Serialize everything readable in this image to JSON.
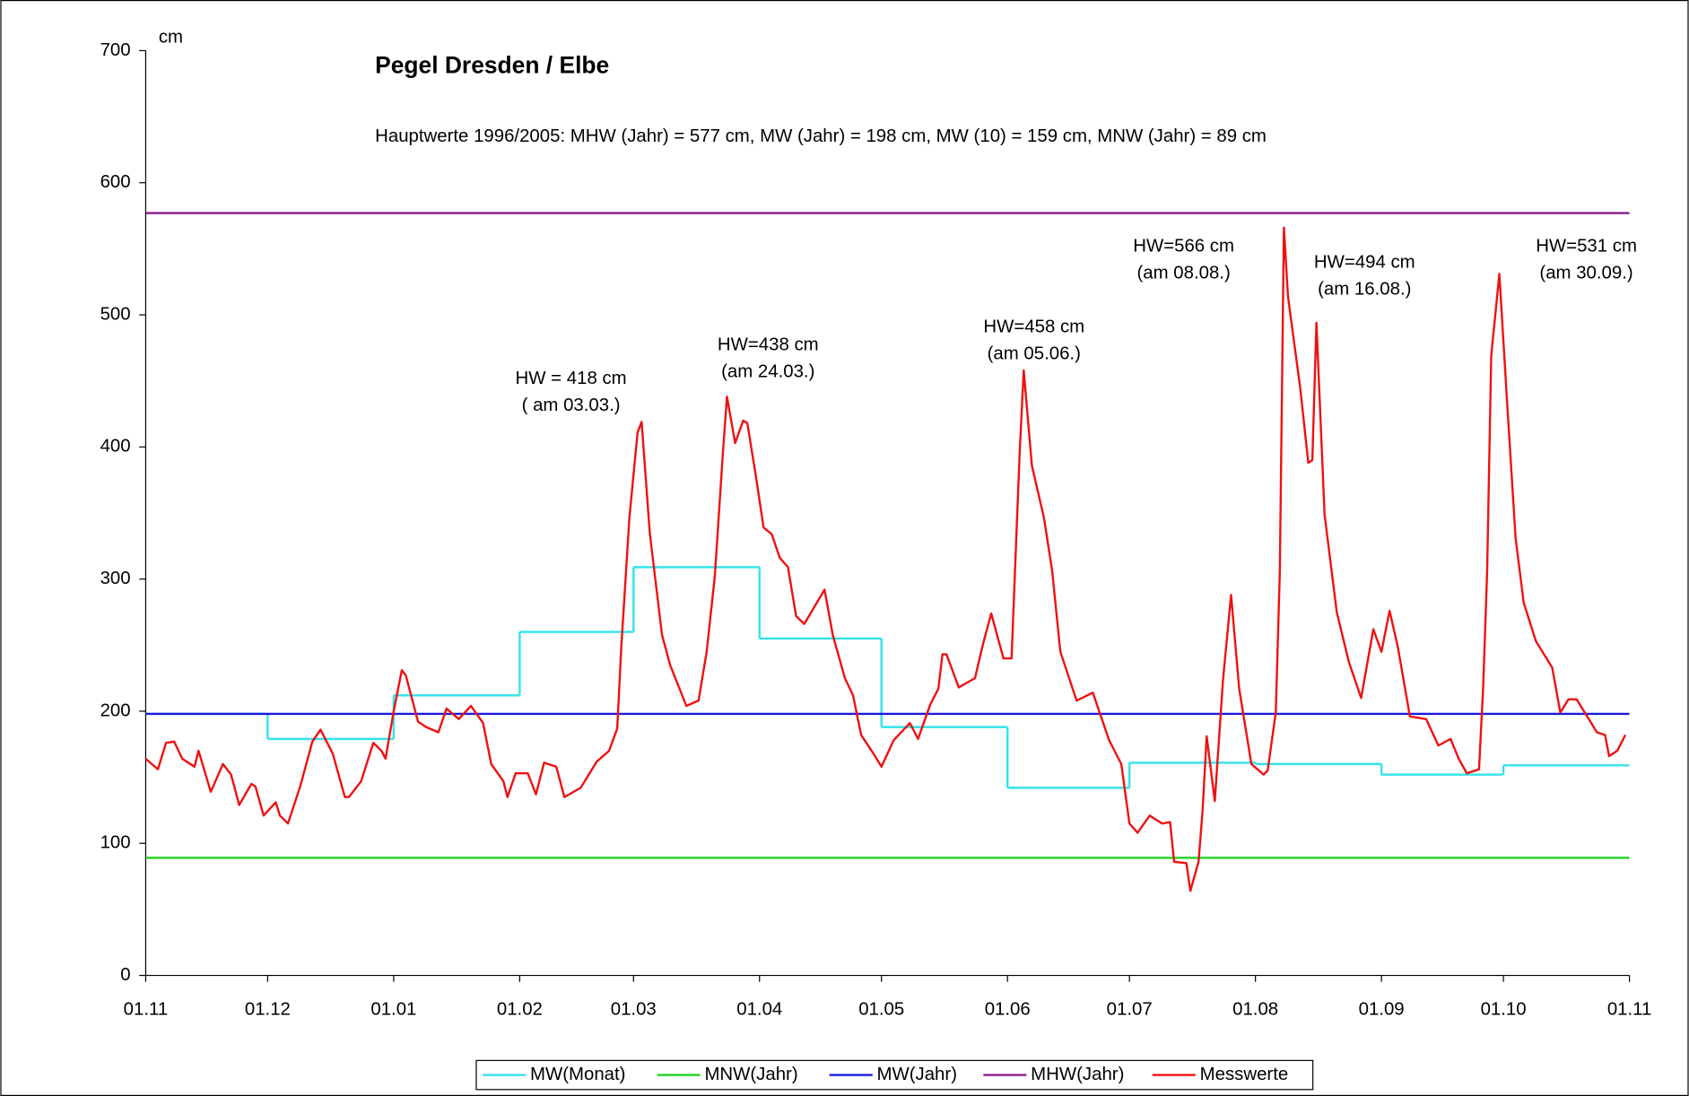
{
  "chart_data": {
    "type": "line",
    "title": "Pegel Dresden / Elbe",
    "subtitle": "Hauptwerte 1996/2005: MHW (Jahr) = 577 cm, MW (Jahr) = 198 cm, MW (10) = 159 cm, MNW (Jahr) = 89 cm",
    "ylabel": "cm",
    "xlim": [
      0,
      365
    ],
    "xticks": [
      {
        "value": 0,
        "label": "01.11"
      },
      {
        "value": 30,
        "label": "01.12"
      },
      {
        "value": 61,
        "label": "01.01"
      },
      {
        "value": 92,
        "label": "01.02"
      },
      {
        "value": 120,
        "label": "01.03"
      },
      {
        "value": 151,
        "label": "01.04"
      },
      {
        "value": 181,
        "label": "01.05"
      },
      {
        "value": 212,
        "label": "01.06"
      },
      {
        "value": 242,
        "label": "01.07"
      },
      {
        "value": 273,
        "label": "01.08"
      },
      {
        "value": 304,
        "label": "01.09"
      },
      {
        "value": 334,
        "label": "01.10"
      },
      {
        "value": 365,
        "label": "01.11"
      }
    ],
    "ylim": [
      0,
      700
    ],
    "yticks": [
      0,
      100,
      200,
      300,
      400,
      500,
      600,
      700
    ],
    "legend": "bottom",
    "series": [
      {
        "name": "MW(Monat)",
        "color": "#33e3ea",
        "style": "step",
        "bins": [
          0,
          30,
          61,
          92,
          120,
          151,
          181,
          212,
          242,
          273,
          304,
          334,
          365
        ],
        "values": [
          198,
          179,
          212,
          260,
          309,
          255,
          188,
          142,
          161,
          160,
          152,
          159
        ]
      },
      {
        "name": "MNW(Jahr)",
        "color": "#22d422",
        "style": "hline",
        "values": [
          89
        ]
      },
      {
        "name": "MW(Jahr)",
        "color": "#1a1adc",
        "style": "hline",
        "values": [
          198
        ]
      },
      {
        "name": "MHW(Jahr)",
        "color": "#8a1a8a",
        "style": "hline",
        "values": [
          577
        ]
      },
      {
        "name": "Messwerte",
        "color": "#ee1111",
        "style": "line",
        "x": [
          0,
          3,
          5,
          7,
          9,
          12,
          13,
          16,
          19,
          21,
          23,
          26,
          27,
          29,
          32,
          33,
          35,
          38,
          41,
          43,
          46,
          49,
          50,
          53,
          56,
          58,
          59,
          61,
          63,
          64,
          67,
          69,
          72,
          74,
          77,
          80,
          83,
          85,
          88,
          89,
          91,
          94,
          96,
          98,
          101,
          103,
          107,
          111,
          114,
          116,
          117,
          119,
          121,
          122,
          124,
          127,
          129,
          133,
          136,
          138,
          140,
          142,
          143,
          145,
          147,
          148,
          150,
          152,
          154,
          156,
          158,
          160,
          162,
          167,
          169,
          172,
          174,
          176,
          179,
          181,
          184,
          188,
          190,
          193,
          195,
          196,
          197,
          200,
          204,
          206,
          208,
          211,
          213,
          215,
          216,
          218,
          221,
          223,
          225,
          229,
          233,
          237,
          240,
          242,
          244,
          247,
          250,
          252,
          253,
          256,
          257,
          259,
          260,
          261,
          263,
          265,
          267,
          269,
          272,
          275,
          276,
          278,
          279,
          280,
          281,
          284,
          286,
          287,
          288,
          290,
          293,
          296,
          299,
          302,
          304,
          306,
          308,
          311,
          315,
          318,
          321,
          323,
          325,
          328,
          329,
          330,
          331,
          333,
          335,
          337,
          339,
          342,
          346,
          348,
          350,
          352,
          355,
          357,
          359,
          360,
          362,
          364
        ],
        "values": [
          164,
          156,
          176,
          177,
          164,
          158,
          170,
          139,
          160,
          152,
          129,
          145,
          143,
          121,
          131,
          121,
          115,
          143,
          177,
          186,
          168,
          135,
          135,
          147,
          176,
          170,
          164,
          200,
          231,
          227,
          192,
          188,
          184,
          202,
          194,
          204,
          191,
          160,
          147,
          135,
          153,
          153,
          137,
          161,
          158,
          135,
          142,
          162,
          170,
          187,
          249,
          347,
          411,
          419,
          335,
          258,
          235,
          204,
          208,
          245,
          302,
          396,
          438,
          403,
          420,
          418,
          380,
          339,
          334,
          316,
          309,
          272,
          266,
          292,
          258,
          225,
          212,
          182,
          168,
          158,
          178,
          191,
          179,
          205,
          217,
          243,
          243,
          218,
          225,
          251,
          274,
          240,
          240,
          396,
          458,
          386,
          346,
          306,
          245,
          208,
          214,
          178,
          160,
          115,
          108,
          121,
          115,
          116,
          86,
          85,
          64,
          86,
          125,
          181,
          132,
          223,
          288,
          217,
          160,
          152,
          155,
          199,
          306,
          566,
          514,
          445,
          388,
          390,
          494,
          349,
          275,
          237,
          210,
          262,
          245,
          276,
          249,
          196,
          194,
          174,
          179,
          164,
          153,
          156,
          217,
          306,
          469,
          531,
          429,
          331,
          282,
          253,
          233,
          199,
          209,
          209,
          194,
          184,
          182,
          166,
          170,
          182
        ]
      }
    ],
    "annotations": [
      [
        "HW = 418 cm",
        "( am 03.03.)"
      ],
      [
        "HW=438 cm",
        "(am 24.03.)"
      ],
      [
        "HW=458 cm",
        "(am 05.06.)"
      ],
      [
        "HW=566 cm",
        "(am 08.08.)"
      ],
      [
        "HW=494 cm",
        "(am 16.08.)"
      ],
      [
        "HW=531 cm",
        "(am 30.09.)"
      ]
    ]
  }
}
